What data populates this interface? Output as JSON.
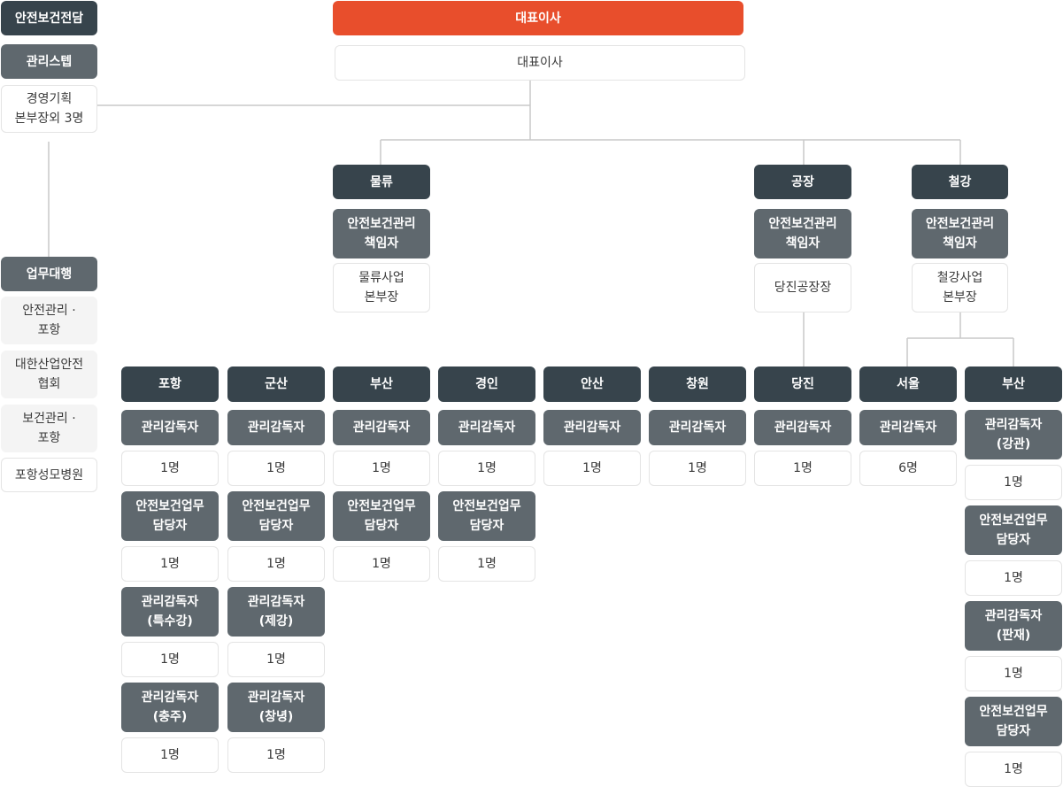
{
  "ceo": {
    "header": "대표이사",
    "title": "대표이사"
  },
  "safety_team": {
    "header": "안전보건전담",
    "sub": "관리스텝",
    "member": "경영기획\n본부장외 3명"
  },
  "agency": {
    "header": "업무대행",
    "items": [
      "안전관리 ·\n포항",
      "대한산업안전\n협회",
      "보건관리 ·\n포항",
      "포항성모병원"
    ]
  },
  "divisions": {
    "logistics": {
      "header": "물류",
      "role": "안전보건관리\n책임자",
      "person": "물류사업\n본부장"
    },
    "factory": {
      "header": "공장",
      "role": "안전보건관리\n책임자",
      "person": "당진공장장"
    },
    "steel": {
      "header": "철강",
      "role": "안전보건관리\n책임자",
      "person": "철강사업\n본부장"
    }
  },
  "sites": [
    {
      "header": "포항",
      "roles": [
        {
          "role": "관리감독자",
          "count": "1명"
        },
        {
          "role": "안전보건업무\n담당자",
          "count": "1명"
        },
        {
          "role": "관리감독자\n(특수강)",
          "count": "1명"
        },
        {
          "role": "관리감독자\n(충주)",
          "count": "1명"
        }
      ]
    },
    {
      "header": "군산",
      "roles": [
        {
          "role": "관리감독자",
          "count": "1명"
        },
        {
          "role": "안전보건업무\n담당자",
          "count": "1명"
        },
        {
          "role": "관리감독자\n(제강)",
          "count": "1명"
        },
        {
          "role": "관리감독자\n(창녕)",
          "count": "1명"
        }
      ]
    },
    {
      "header": "부산",
      "roles": [
        {
          "role": "관리감독자",
          "count": "1명"
        },
        {
          "role": "안전보건업무\n담당자",
          "count": "1명"
        }
      ]
    },
    {
      "header": "경인",
      "roles": [
        {
          "role": "관리감독자",
          "count": "1명"
        },
        {
          "role": "안전보건업무\n담당자",
          "count": "1명"
        }
      ]
    },
    {
      "header": "안산",
      "roles": [
        {
          "role": "관리감독자",
          "count": "1명"
        }
      ]
    },
    {
      "header": "창원",
      "roles": [
        {
          "role": "관리감독자",
          "count": "1명"
        }
      ]
    },
    {
      "header": "당진",
      "roles": [
        {
          "role": "관리감독자",
          "count": "1명"
        }
      ]
    },
    {
      "header": "서울",
      "roles": [
        {
          "role": "관리감독자",
          "count": "6명"
        }
      ]
    },
    {
      "header": "부산",
      "roles": [
        {
          "role": "관리감독자\n(강관)",
          "count": "1명"
        },
        {
          "role": "안전보건업무\n담당자",
          "count": "1명"
        },
        {
          "role": "관리감독자\n(판재)",
          "count": "1명"
        },
        {
          "role": "안전보건업무\n담당자",
          "count": "1명"
        }
      ]
    }
  ]
}
